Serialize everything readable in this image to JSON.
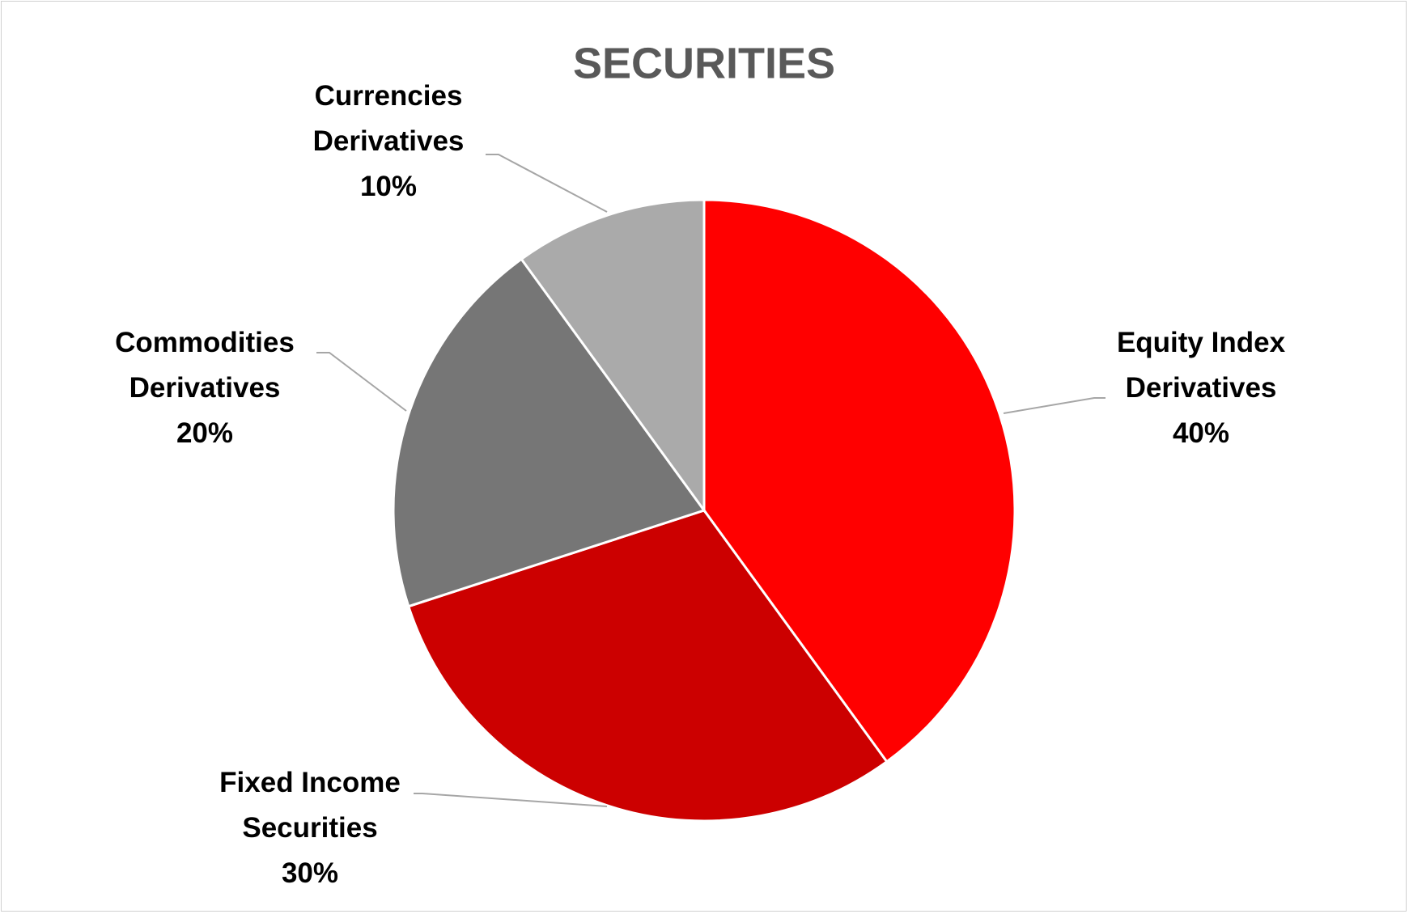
{
  "chart_data": {
    "type": "pie",
    "title": "SECURITIES",
    "categories": [
      "Equity Index Derivatives",
      "Fixed Income Securities",
      "Commodities Derivatives",
      "Currencies Derivatives"
    ],
    "values": [
      40,
      30,
      20,
      10
    ],
    "value_labels": [
      "40%",
      "30%",
      "20%",
      "10%"
    ],
    "colors": [
      "#ff0000",
      "#cc0000",
      "#767676",
      "#aaaaaa"
    ]
  }
}
